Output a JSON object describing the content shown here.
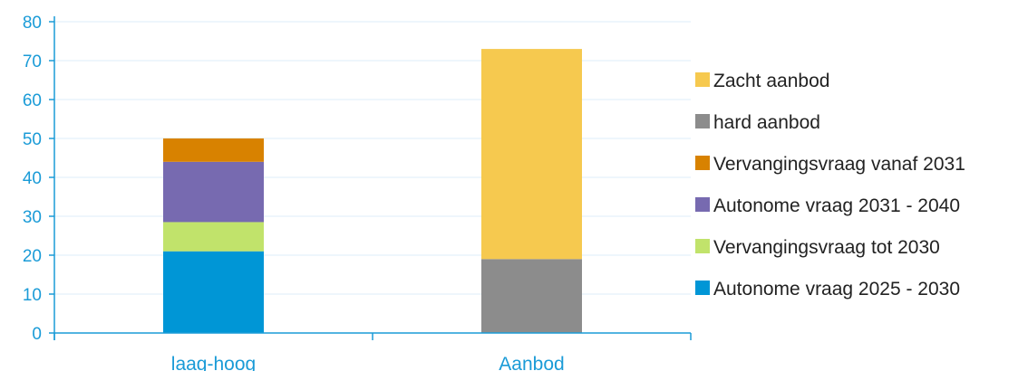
{
  "chart_data": {
    "type": "bar",
    "stacked": true,
    "categories": [
      "laag-hoog",
      "Aanbod"
    ],
    "series": [
      {
        "name": "Autonome vraag 2025 - 2030",
        "color": "#0096d6",
        "values": [
          21,
          0
        ]
      },
      {
        "name": "Vervangingsvraag tot 2030",
        "color": "#c1e36b",
        "values": [
          7.5,
          0
        ]
      },
      {
        "name": "Autonome vraag 2031 - 2040",
        "color": "#776ab0",
        "values": [
          15.5,
          0
        ]
      },
      {
        "name": "Vervangingsvraag vanaf 2031",
        "color": "#d88200",
        "values": [
          6,
          0
        ]
      },
      {
        "name": "hard aanbod",
        "color": "#8c8c8c",
        "values": [
          0,
          19
        ]
      },
      {
        "name": "Zacht aanbod",
        "color": "#f6c94f",
        "values": [
          0,
          54
        ]
      }
    ],
    "ylim": [
      0,
      80
    ],
    "yticks": [
      0,
      10,
      20,
      30,
      40,
      50,
      60,
      70,
      80
    ],
    "grid": true,
    "legend_position": "right",
    "legend_order": [
      "Zacht aanbod",
      "hard aanbod",
      "Vervangingsvraag vanaf 2031",
      "Autonome vraag 2031 - 2040",
      "Vervangingsvraag tot 2030",
      "Autonome vraag 2025 - 2030"
    ]
  }
}
